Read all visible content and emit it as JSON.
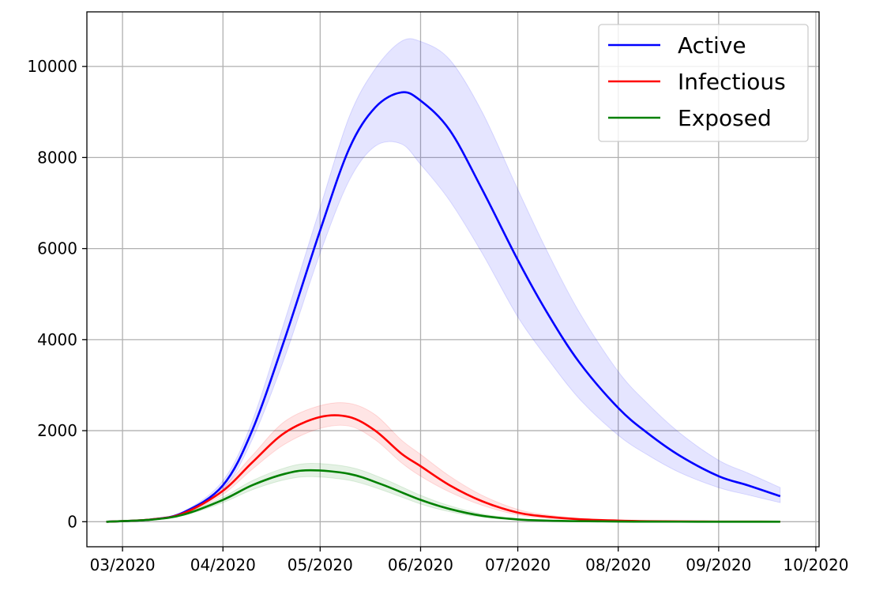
{
  "chart_data": {
    "type": "line",
    "x_type": "date",
    "xlim": [
      "2020-02-19",
      "2020-10-02"
    ],
    "ylim": [
      -550,
      11200
    ],
    "x_ticks": [
      "2020-03-01",
      "2020-04-01",
      "2020-05-01",
      "2020-06-01",
      "2020-07-01",
      "2020-08-01",
      "2020-09-01",
      "2020-10-01"
    ],
    "x_tick_labels": [
      "03/2020",
      "04/2020",
      "05/2020",
      "06/2020",
      "07/2020",
      "08/2020",
      "09/2020",
      "10/2020"
    ],
    "y_ticks": [
      0,
      2000,
      4000,
      6000,
      8000,
      10000
    ],
    "y_tick_labels": [
      "0",
      "2000",
      "4000",
      "6000",
      "8000",
      "10000"
    ],
    "grid": true,
    "legend_position": "top-right",
    "series": [
      {
        "name": "Active",
        "color": "#0000ff",
        "band_color": "#0000ff",
        "x": [
          "2020-02-25",
          "2020-03-10",
          "2020-03-20",
          "2020-04-01",
          "2020-04-10",
          "2020-04-20",
          "2020-05-01",
          "2020-05-10",
          "2020-05-18",
          "2020-05-26",
          "2020-06-01",
          "2020-06-10",
          "2020-06-20",
          "2020-07-01",
          "2020-07-10",
          "2020-07-20",
          "2020-08-01",
          "2020-08-10",
          "2020-08-20",
          "2020-09-01",
          "2020-09-10",
          "2020-09-20"
        ],
        "values": [
          0,
          50,
          210,
          800,
          2000,
          4000,
          6400,
          8200,
          9100,
          9430,
          9250,
          8600,
          7300,
          5750,
          4600,
          3500,
          2500,
          1950,
          1450,
          1000,
          800,
          560
        ],
        "lower": [
          0,
          45,
          190,
          700,
          1800,
          3600,
          5900,
          7500,
          8250,
          8300,
          7850,
          7050,
          5900,
          4500,
          3600,
          2700,
          1900,
          1470,
          1080,
          750,
          590,
          420
        ],
        "upper": [
          0,
          55,
          235,
          900,
          2200,
          4400,
          6900,
          8900,
          9950,
          10550,
          10550,
          10150,
          9000,
          7300,
          5950,
          4600,
          3300,
          2600,
          1950,
          1350,
          1070,
          750
        ]
      },
      {
        "name": "Infectious",
        "color": "#ff0000",
        "band_color": "#ff0000",
        "x": [
          "2020-02-25",
          "2020-03-10",
          "2020-03-20",
          "2020-04-01",
          "2020-04-10",
          "2020-04-20",
          "2020-05-01",
          "2020-05-10",
          "2020-05-18",
          "2020-05-26",
          "2020-06-01",
          "2020-06-10",
          "2020-06-20",
          "2020-07-01",
          "2020-07-10",
          "2020-07-20",
          "2020-08-01",
          "2020-08-10",
          "2020-08-20",
          "2020-09-01",
          "2020-09-10",
          "2020-09-20"
        ],
        "values": [
          0,
          50,
          190,
          680,
          1300,
          1950,
          2300,
          2300,
          2000,
          1500,
          1220,
          800,
          450,
          200,
          110,
          55,
          25,
          12,
          6,
          3,
          2,
          1
        ],
        "lower": [
          0,
          45,
          170,
          600,
          1150,
          1700,
          2050,
          2100,
          1800,
          1300,
          1000,
          650,
          360,
          150,
          80,
          40,
          18,
          9,
          4,
          2,
          1,
          0
        ],
        "upper": [
          0,
          55,
          210,
          760,
          1450,
          2200,
          2550,
          2600,
          2350,
          1800,
          1480,
          1000,
          580,
          270,
          150,
          75,
          35,
          17,
          8,
          4,
          2,
          1
        ]
      },
      {
        "name": "Exposed",
        "color": "#008000",
        "band_color": "#008000",
        "x": [
          "2020-02-25",
          "2020-03-10",
          "2020-03-20",
          "2020-04-01",
          "2020-04-10",
          "2020-04-20",
          "2020-04-28",
          "2020-05-10",
          "2020-05-20",
          "2020-06-01",
          "2020-06-10",
          "2020-06-20",
          "2020-07-01",
          "2020-07-10",
          "2020-07-20",
          "2020-08-01",
          "2020-08-10",
          "2020-08-20",
          "2020-09-01",
          "2020-09-10",
          "2020-09-20"
        ],
        "values": [
          0,
          45,
          160,
          480,
          800,
          1050,
          1130,
          1050,
          820,
          480,
          280,
          130,
          50,
          25,
          12,
          5,
          2,
          1,
          0,
          0,
          0
        ],
        "lower": [
          0,
          40,
          140,
          420,
          700,
          920,
          990,
          910,
          700,
          390,
          220,
          100,
          38,
          18,
          8,
          3,
          1,
          0,
          0,
          0,
          0
        ],
        "upper": [
          0,
          50,
          180,
          540,
          900,
          1180,
          1280,
          1200,
          960,
          580,
          350,
          170,
          65,
          32,
          15,
          7,
          3,
          1,
          0,
          0,
          0
        ]
      }
    ]
  }
}
